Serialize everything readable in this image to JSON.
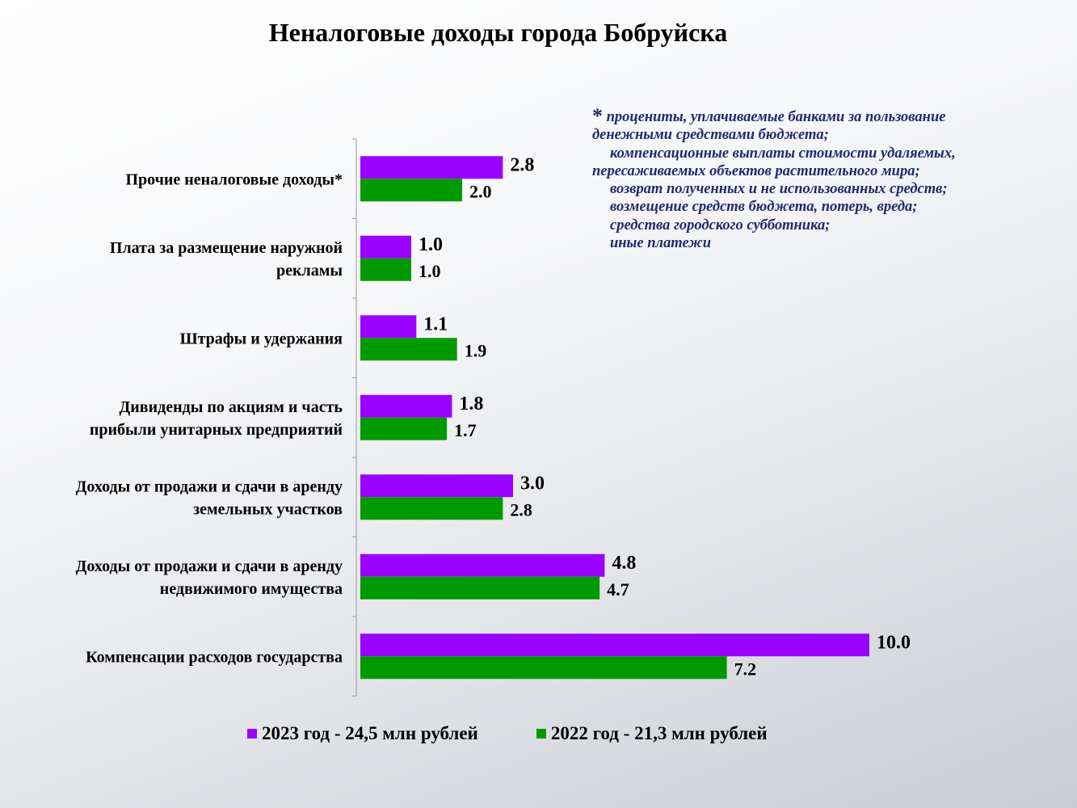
{
  "chart_data": {
    "type": "bar",
    "orientation": "horizontal",
    "title": "Неналоговые доходы города Бобруйска",
    "categories": [
      [
        "Прочие неналоговые доходы*"
      ],
      [
        "Плата за размещение наружной",
        "рекламы"
      ],
      [
        "Штрафы и удержания"
      ],
      [
        "Дивиденды по акциям и часть",
        "прибыли унитарных предприятий"
      ],
      [
        "Доходы от продажи и сдачи в аренду",
        "земельных участков"
      ],
      [
        "Доходы от продажи и  сдачи в аренду",
        "недвижимого  имущества"
      ],
      [
        "Компенсации расходов государства"
      ]
    ],
    "series": [
      {
        "name": "2023 год -  24,5 млн рублей",
        "color": "#9900ff",
        "values": [
          2.8,
          1.0,
          1.1,
          1.8,
          3.0,
          4.8,
          10.0
        ],
        "labels": [
          "2.8",
          "1.0",
          "1.1",
          "1.8",
          "3.0",
          "4.8",
          "10.0"
        ]
      },
      {
        "name": "2022 год - 21,3 млн рублей",
        "color": "#009900",
        "values": [
          2.0,
          1.0,
          1.9,
          1.7,
          2.8,
          4.7,
          7.2
        ],
        "labels": [
          "2.0",
          "1.0",
          "1.9",
          "1.7",
          "2.8",
          "4.7",
          "7.2"
        ]
      }
    ],
    "xlim": [
      0,
      10.0
    ],
    "legend": "bottom",
    "grid": false
  },
  "note": {
    "star": "*",
    "lines": [
      "процениты, уплачиваемые банками за пользование",
      "денежными средствами бюджета;",
      "компенсационные выплаты стоимости удаляемых,",
      "пересаживаемых объектов растительного мира;",
      "возврат полученных и не использованных средств;",
      "возмещение средств бюджета, потерь, вреда;",
      "средства городского субботника;",
      "иные платежи"
    ]
  }
}
